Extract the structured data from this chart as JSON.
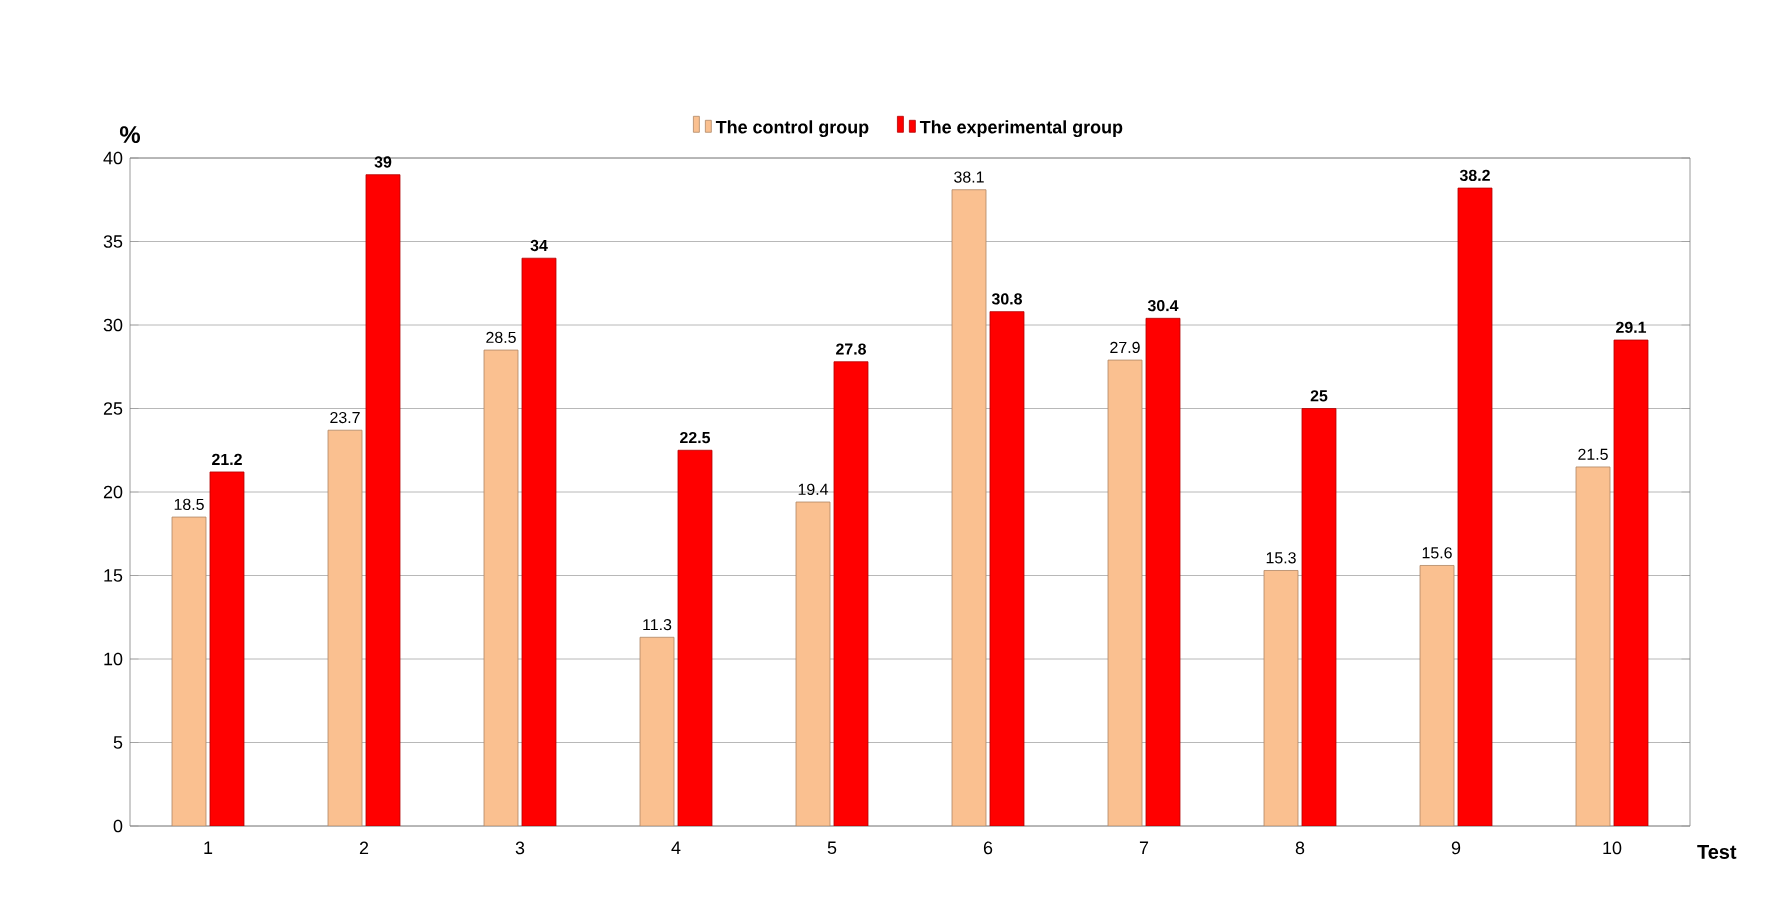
{
  "chart_data": {
    "type": "bar",
    "xlabel": "Test",
    "ylabel": "%",
    "categories": [
      "1",
      "2",
      "3",
      "4",
      "5",
      "6",
      "7",
      "8",
      "9",
      "10"
    ],
    "series": [
      {
        "name": "The control group",
        "color": "#fac090",
        "values": [
          18.5,
          23.7,
          28.5,
          11.3,
          19.4,
          38.1,
          27.9,
          15.3,
          15.6,
          21.5
        ]
      },
      {
        "name": "The experimental group",
        "color": "#ff0000",
        "values": [
          21.2,
          39,
          34,
          22.5,
          27.8,
          30.8,
          30.4,
          25,
          38.2,
          29.1
        ]
      }
    ],
    "ylim": [
      0,
      40
    ],
    "yticks": [
      0,
      5,
      10,
      15,
      20,
      25,
      30,
      35,
      40
    ],
    "grid": "y",
    "legend": "top",
    "data_labels": true
  }
}
